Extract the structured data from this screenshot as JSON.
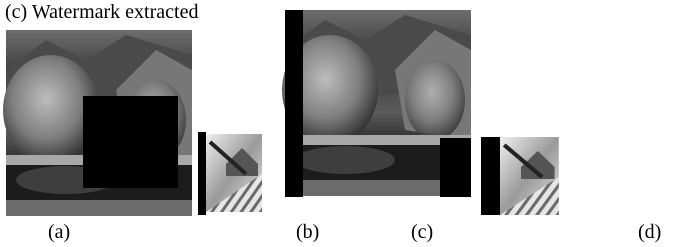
{
  "header": {
    "title": "(c) Watermark extracted"
  },
  "panels": {
    "labels": [
      "(a)",
      "(b)",
      "(c)",
      "(d)"
    ]
  }
}
